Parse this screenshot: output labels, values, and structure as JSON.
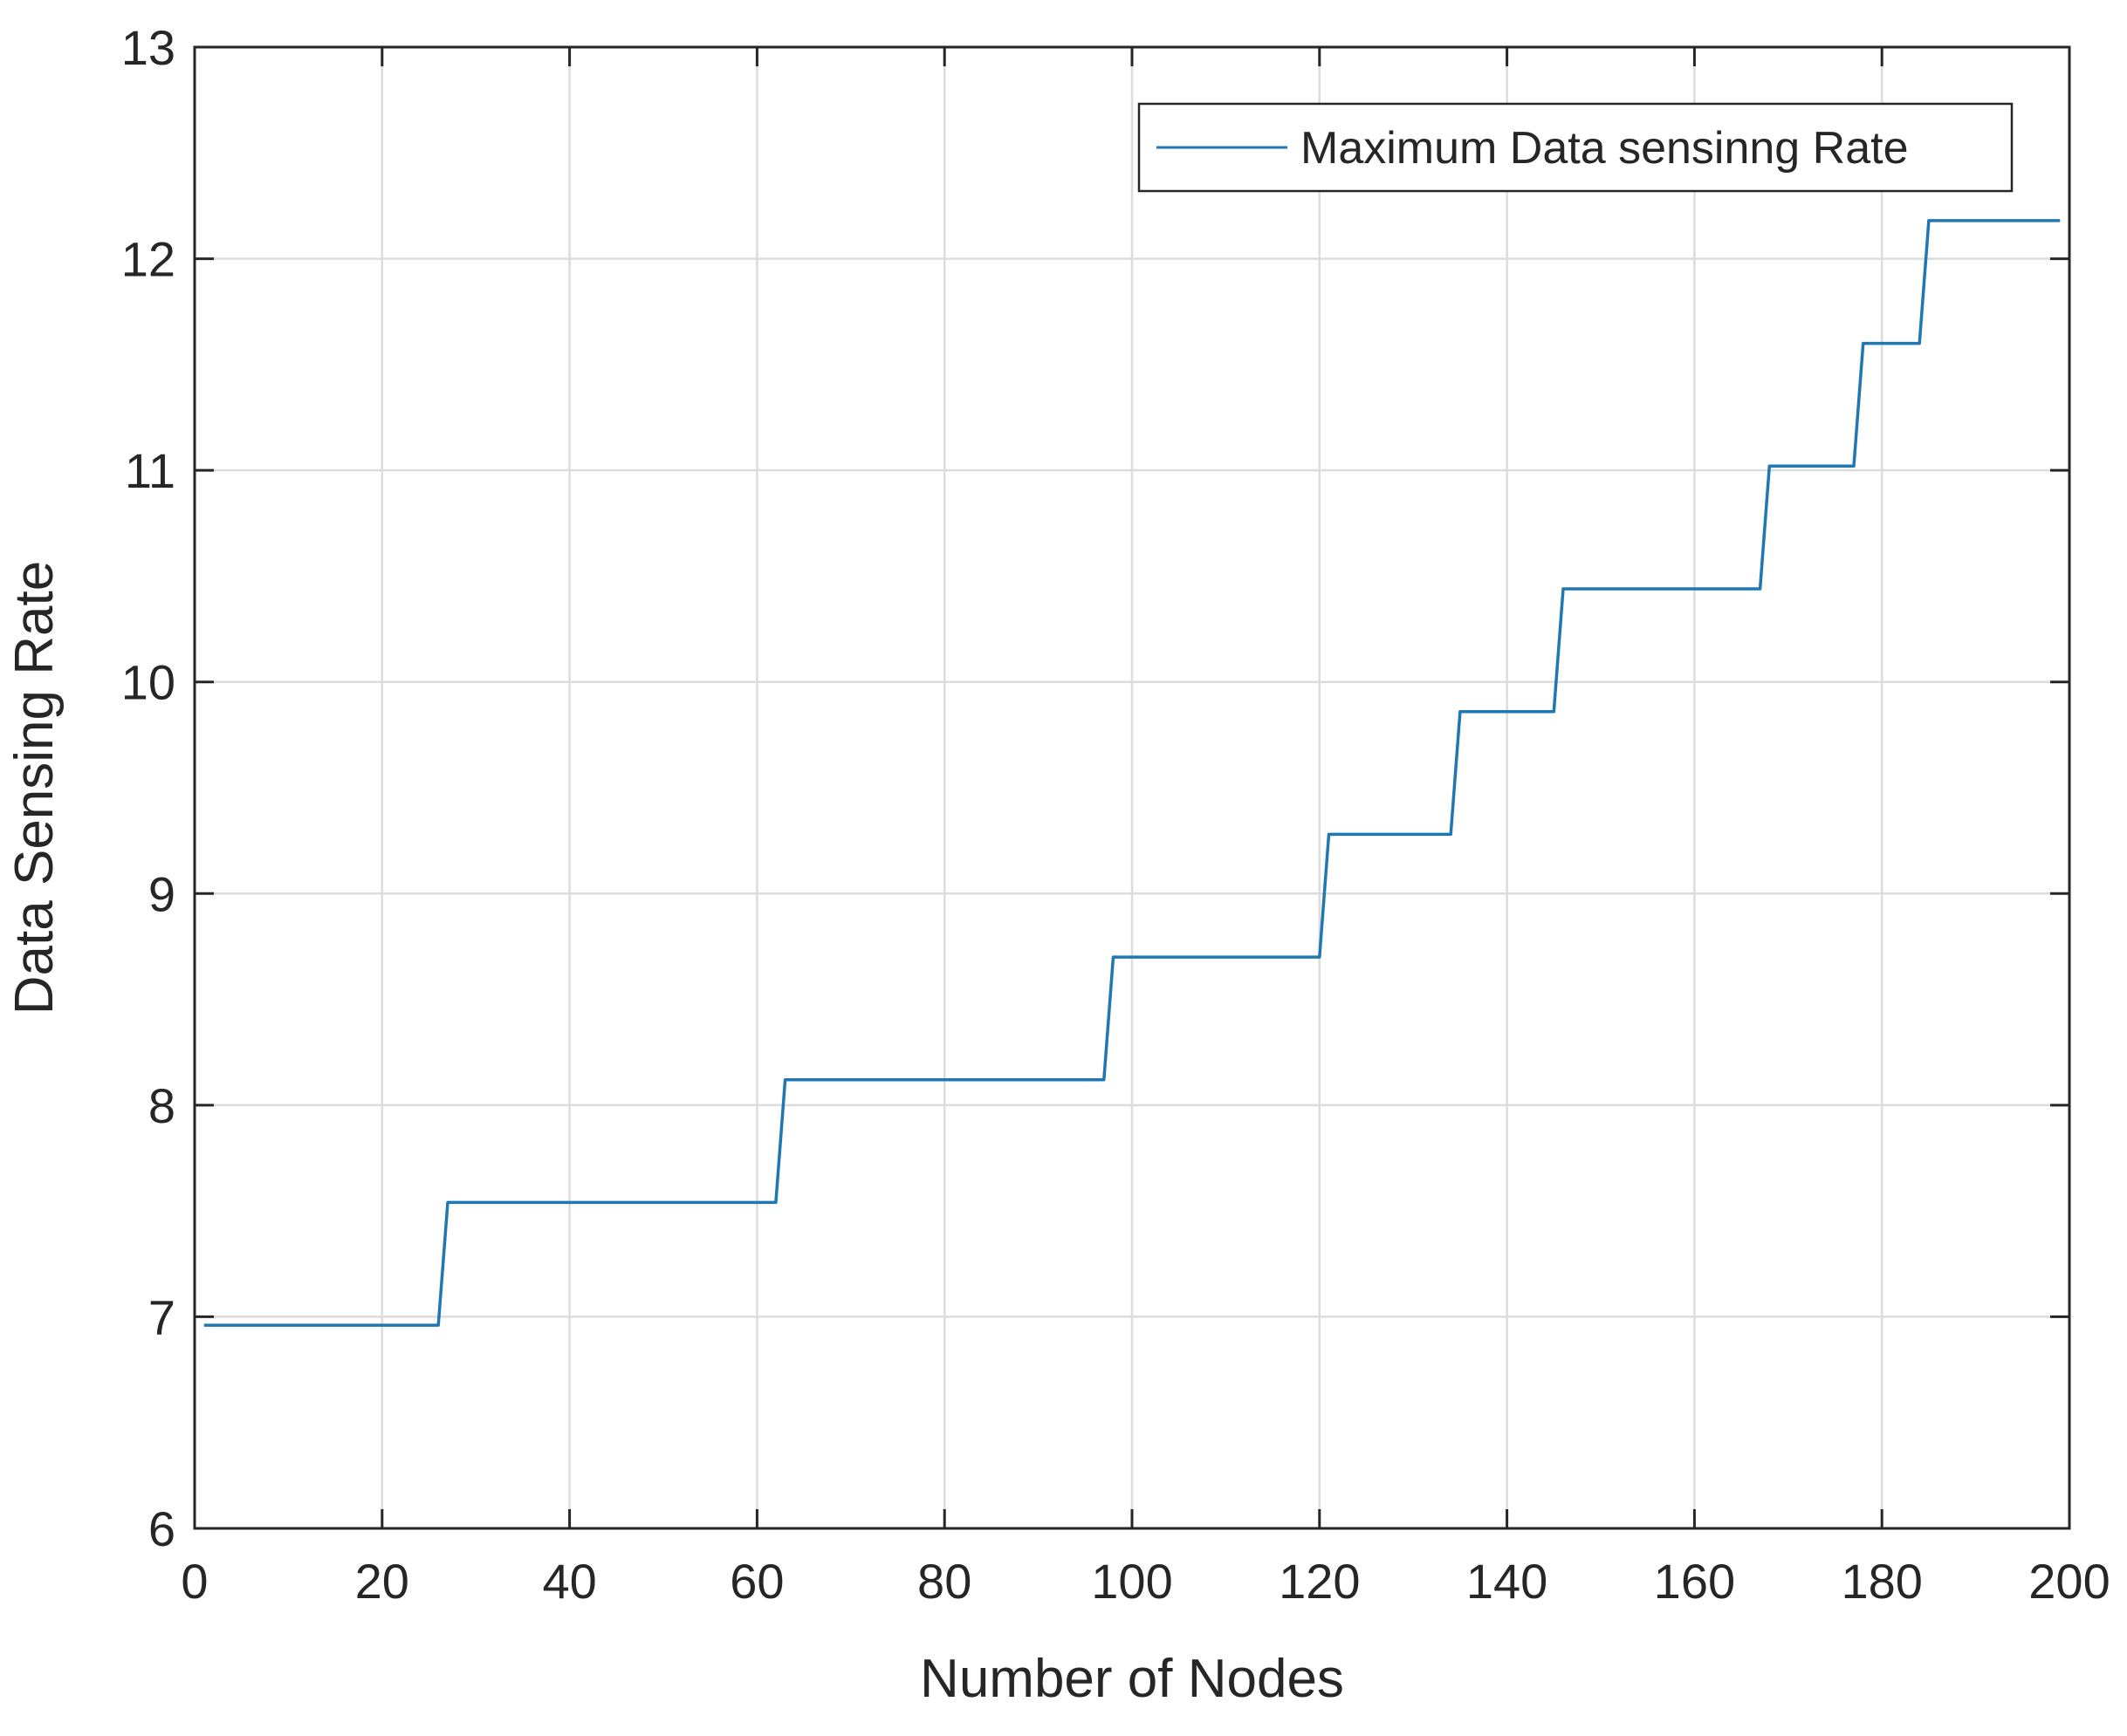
{
  "chart_data": {
    "type": "line",
    "title": "",
    "xlabel": "Number of Nodes",
    "ylabel": "Data Sensing Rate",
    "xlim": [
      0,
      200
    ],
    "ylim": [
      6,
      13
    ],
    "xticks": [
      0,
      20,
      40,
      60,
      80,
      100,
      120,
      140,
      160,
      180,
      200
    ],
    "yticks": [
      6,
      7,
      8,
      9,
      10,
      11,
      12,
      13
    ],
    "grid": true,
    "legend_position": "top-right",
    "series_color": "#1f77b4",
    "series": [
      {
        "name": "Maximum Data sensinng Rate",
        "x": [
          1,
          26,
          27,
          62,
          63,
          97,
          98,
          120,
          121,
          134,
          135,
          145,
          146,
          167,
          168,
          177,
          178,
          184,
          185,
          199
        ],
        "y": [
          6.96,
          6.96,
          7.54,
          7.54,
          8.12,
          8.12,
          8.7,
          8.7,
          9.28,
          9.28,
          9.86,
          9.86,
          10.44,
          10.44,
          11.02,
          11.02,
          11.6,
          11.6,
          12.18,
          12.18
        ]
      }
    ]
  }
}
